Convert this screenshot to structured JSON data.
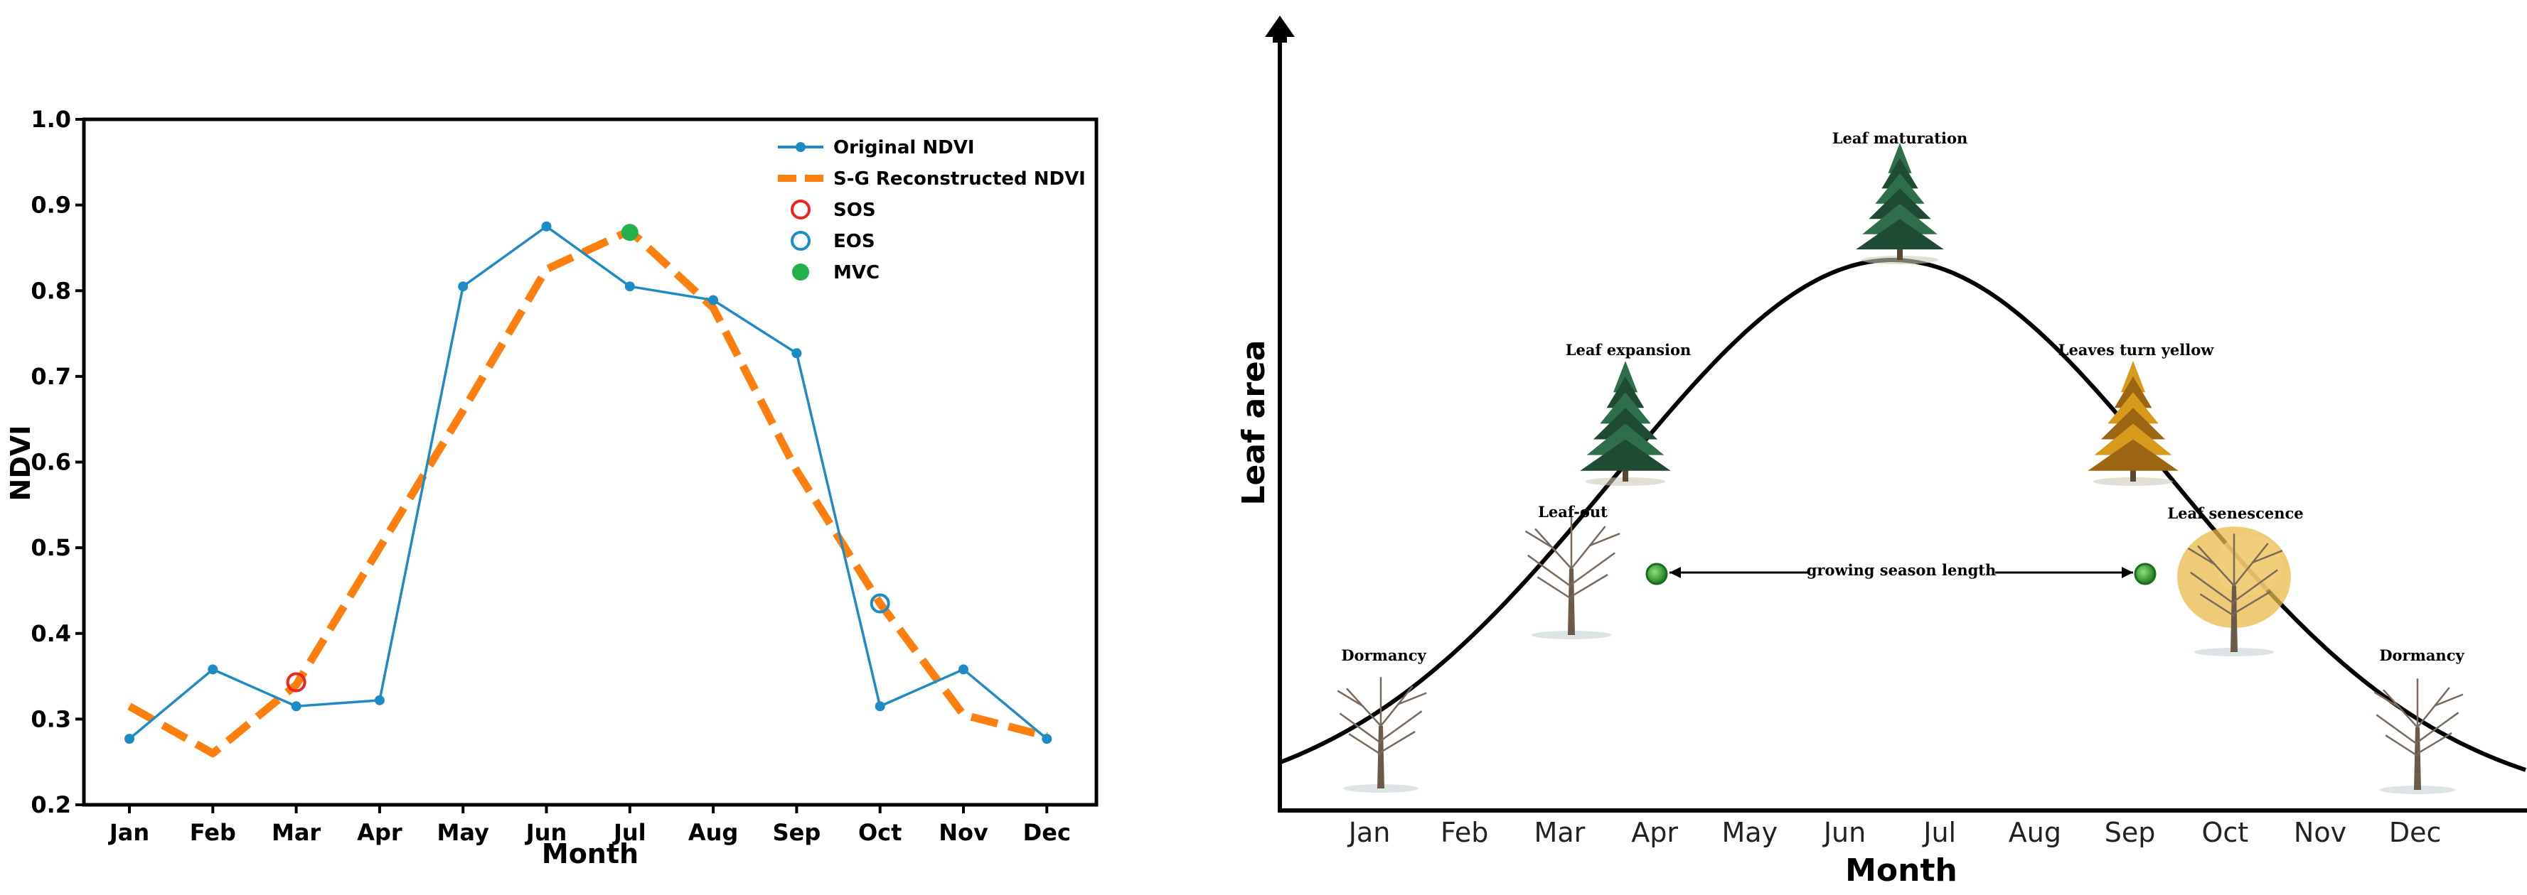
{
  "chart_data": [
    {
      "type": "line",
      "title": "",
      "xlabel": "Month",
      "ylabel": "NDVI",
      "categories": [
        "Jan",
        "Feb",
        "Mar",
        "Apr",
        "May",
        "Jun",
        "Jul",
        "Aug",
        "Sep",
        "Oct",
        "Nov",
        "Dec"
      ],
      "ylim": [
        0.2,
        1.0
      ],
      "yticks": [
        "0.2",
        "0.3",
        "0.4",
        "0.5",
        "0.6",
        "0.7",
        "0.8",
        "0.9",
        "1.0"
      ],
      "series": [
        {
          "name": "Original NDVI",
          "color": "#1f8bc4",
          "values": [
            0.277,
            0.358,
            0.315,
            0.322,
            0.805,
            0.875,
            0.805,
            0.789,
            0.727,
            0.315,
            0.358,
            0.277
          ]
        },
        {
          "name": "S-G Reconstructed NDVI",
          "color": "#ff7f0e",
          "values": [
            0.315,
            0.26,
            0.34,
            0.5,
            0.66,
            0.825,
            0.87,
            0.78,
            0.59,
            0.435,
            0.305,
            0.28
          ]
        }
      ],
      "markers": [
        {
          "name": "SOS",
          "color": "#ee2222",
          "x": "Mar",
          "y": 0.343,
          "style": "open-circle"
        },
        {
          "name": "EOS",
          "color": "#1f8bc4",
          "x": "Oct",
          "y": 0.435,
          "style": "open-circle"
        },
        {
          "name": "MVC",
          "color": "#22b14c",
          "x": "Jul",
          "y": 0.868,
          "style": "filled-circle"
        }
      ],
      "legend": [
        "Original NDVI",
        "S-G Reconstructed NDVI",
        "SOS",
        "EOS",
        "MVC"
      ],
      "legend_position": "top-right"
    },
    {
      "type": "line",
      "title": "",
      "xlabel": "Month",
      "ylabel": "Leaf area",
      "categories": [
        "Jan",
        "Feb",
        "Mar",
        "Apr",
        "May",
        "Jun",
        "Jul",
        "Aug",
        "Sep",
        "Oct",
        "Nov",
        "Dec"
      ],
      "curve": "bell",
      "peak_month": 6.5,
      "growing_season": {
        "label": "growing season length",
        "start": "Apr",
        "end": "Sep",
        "start_month": 4.0,
        "end_month": 9.05
      },
      "stages": [
        {
          "label": "Dormancy",
          "month": 1.0,
          "tree": "bare"
        },
        {
          "label": "Leaf-out",
          "month": 3.6,
          "tree": "bare"
        },
        {
          "label": "Leaf expansion",
          "month": 3.7,
          "tree": "green"
        },
        {
          "label": "Leaf maturation",
          "month": 6.5,
          "tree": "green"
        },
        {
          "label": "Leaves turn yellow",
          "month": 8.8,
          "tree": "yellow"
        },
        {
          "label": "Leaf senescence",
          "month": 9.9,
          "tree": "senescent"
        },
        {
          "label": "Dormancy",
          "month": 12.0,
          "tree": "bare"
        }
      ]
    }
  ]
}
